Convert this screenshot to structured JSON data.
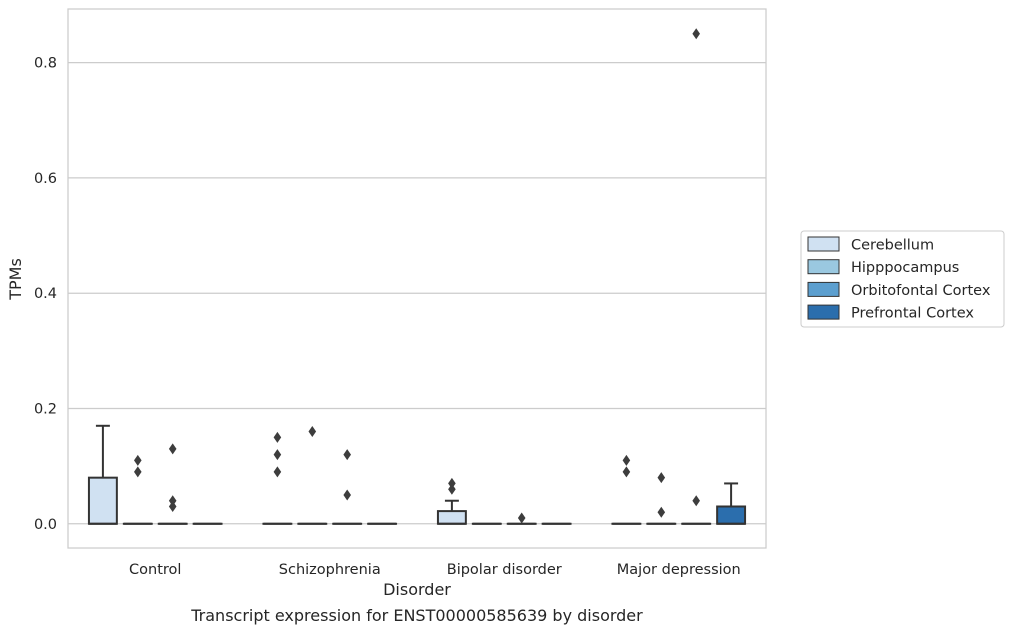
{
  "caption": "Transcript expression for ENST00000585639 by disorder",
  "chart_data": {
    "type": "box",
    "xlabel": "Disorder",
    "ylabel": "TPMs",
    "ylim": [
      -0.042,
      0.893
    ],
    "yticks": [
      0.0,
      0.2,
      0.4,
      0.6,
      0.8
    ],
    "ytick_labels": [
      "0.0",
      "0.2",
      "0.4",
      "0.6",
      "0.8"
    ],
    "grid": "horizontal",
    "legend_position": "right",
    "categories": [
      "Control",
      "Schizophrenia",
      "Bipolar disorder",
      "Major depression"
    ],
    "series": [
      {
        "name": "Cerebellum",
        "color": "#d0e1f2",
        "boxes": [
          {
            "q1": 0.0,
            "median": 0.0,
            "q3": 0.08,
            "whisker_low": 0.0,
            "whisker_high": 0.17,
            "outliers": []
          },
          {
            "q1": 0.0,
            "median": 0.0,
            "q3": 0.0,
            "whisker_low": 0.0,
            "whisker_high": 0.0,
            "outliers": [
              0.09,
              0.12,
              0.15
            ]
          },
          {
            "q1": 0.0,
            "median": 0.0,
            "q3": 0.022,
            "whisker_low": 0.0,
            "whisker_high": 0.04,
            "outliers": [
              0.06,
              0.07
            ]
          },
          {
            "q1": 0.0,
            "median": 0.0,
            "q3": 0.0,
            "whisker_low": 0.0,
            "whisker_high": 0.0,
            "outliers": [
              0.09,
              0.11
            ]
          }
        ]
      },
      {
        "name": "Hipppocampus",
        "color": "#9ac8e0",
        "boxes": [
          {
            "q1": 0.0,
            "median": 0.0,
            "q3": 0.0,
            "whisker_low": 0.0,
            "whisker_high": 0.0,
            "outliers": [
              0.09,
              0.11
            ]
          },
          {
            "q1": 0.0,
            "median": 0.0,
            "q3": 0.0,
            "whisker_low": 0.0,
            "whisker_high": 0.0,
            "outliers": [
              0.16
            ]
          },
          {
            "q1": 0.0,
            "median": 0.0,
            "q3": 0.0,
            "whisker_low": 0.0,
            "whisker_high": 0.0,
            "outliers": []
          },
          {
            "q1": 0.0,
            "median": 0.0,
            "q3": 0.0,
            "whisker_low": 0.0,
            "whisker_high": 0.0,
            "outliers": [
              0.02,
              0.08
            ]
          }
        ]
      },
      {
        "name": "Orbitofontal Cortex",
        "color": "#5c9fcf",
        "boxes": [
          {
            "q1": 0.0,
            "median": 0.0,
            "q3": 0.0,
            "whisker_low": 0.0,
            "whisker_high": 0.0,
            "outliers": [
              0.03,
              0.04,
              0.13
            ]
          },
          {
            "q1": 0.0,
            "median": 0.0,
            "q3": 0.0,
            "whisker_low": 0.0,
            "whisker_high": 0.0,
            "outliers": [
              0.05,
              0.12
            ]
          },
          {
            "q1": 0.0,
            "median": 0.0,
            "q3": 0.0,
            "whisker_low": 0.0,
            "whisker_high": 0.0,
            "outliers": [
              0.01
            ]
          },
          {
            "q1": 0.0,
            "median": 0.0,
            "q3": 0.0,
            "whisker_low": 0.0,
            "whisker_high": 0.0,
            "outliers": [
              0.04,
              0.85
            ]
          }
        ]
      },
      {
        "name": "Prefrontal Cortex",
        "color": "#2b6ead",
        "boxes": [
          {
            "q1": 0.0,
            "median": 0.0,
            "q3": 0.0,
            "whisker_low": 0.0,
            "whisker_high": 0.0,
            "outliers": []
          },
          {
            "q1": 0.0,
            "median": 0.0,
            "q3": 0.0,
            "whisker_low": 0.0,
            "whisker_high": 0.0,
            "outliers": []
          },
          {
            "q1": 0.0,
            "median": 0.0,
            "q3": 0.0,
            "whisker_low": 0.0,
            "whisker_high": 0.0,
            "outliers": []
          },
          {
            "q1": 0.0,
            "median": 0.0,
            "q3": 0.03,
            "whisker_low": 0.0,
            "whisker_high": 0.07,
            "outliers": []
          }
        ]
      }
    ]
  }
}
